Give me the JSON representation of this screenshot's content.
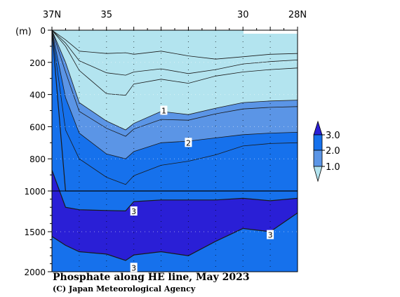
{
  "chart_data": {
    "type": "contour",
    "title": "Phosphate along HE line, May 2023",
    "credit": "(C) Japan Meteorological Agency",
    "ylabel": "(m)",
    "x_ticks": [
      "37N",
      "35",
      "30",
      "28N"
    ],
    "x_tick_values": [
      37,
      35,
      30,
      28
    ],
    "xlim": [
      37,
      28
    ],
    "y_ticks": [
      "0",
      "200",
      "400",
      "600",
      "800",
      "1000",
      "1500",
      "2000"
    ],
    "y_tick_values": [
      0,
      200,
      400,
      600,
      800,
      1000,
      1500,
      2000
    ],
    "ylim": [
      0,
      2000
    ],
    "y_scale": "piecewise: 0-1000 upper panel, 1000-2000 lower panel",
    "stations": [
      36.0,
      35.0,
      34.0,
      33.0,
      32.0,
      31.0,
      30.0,
      29.0
    ],
    "colorbar": {
      "labels": [
        "3.0",
        "2.0",
        "1.0"
      ],
      "levels": [
        1.0,
        2.0,
        3.0
      ]
    },
    "contour_labels": [
      {
        "text": "1",
        "lat": 32.9,
        "depth": 500
      },
      {
        "text": "2",
        "lat": 32.0,
        "depth": 700
      },
      {
        "text": "3",
        "lat": 34.0,
        "depth": 1250
      },
      {
        "text": "3",
        "lat": 29.0,
        "depth": 1540
      },
      {
        "text": "3",
        "lat": 34.0,
        "depth": 1950
      }
    ],
    "isoline_depths": {
      "lat": [
        37.0,
        36.5,
        36.0,
        35.0,
        34.3,
        34.0,
        33.0,
        32.0,
        31.0,
        30.0,
        29.0,
        28.0
      ],
      "c0.4": [
        0,
        60,
        130,
        145,
        140,
        150,
        130,
        160,
        180,
        165,
        150,
        145
      ],
      "c0.6": [
        0,
        80,
        190,
        265,
        280,
        260,
        240,
        270,
        245,
        210,
        195,
        185
      ],
      "c0.8": [
        0,
        100,
        250,
        395,
        405,
        335,
        305,
        330,
        285,
        260,
        245,
        235
      ],
      "c1.0": [
        0,
        200,
        450,
        565,
        620,
        580,
        505,
        525,
        485,
        450,
        440,
        435
      ],
      "c1.5": [
        0,
        260,
        505,
        610,
        660,
        615,
        555,
        560,
        520,
        490,
        480,
        475
      ],
      "c2.0": [
        0,
        420,
        640,
        770,
        800,
        755,
        700,
        690,
        670,
        650,
        640,
        635
      ],
      "c2.5": [
        0,
        620,
        800,
        915,
        960,
        905,
        840,
        815,
        775,
        720,
        705,
        700
      ],
      "c2.8": [
        0,
        1000,
        1000,
        1000,
        1000,
        1000,
        1000,
        1000,
        1000,
        1000,
        1000,
        1000
      ],
      "c3.0": [
        870,
        1200,
        1230,
        1240,
        1245,
        1130,
        1110,
        1110,
        1110,
        1090,
        1120,
        1090
      ],
      "c3.2": [
        1560,
        1670,
        1750,
        1780,
        1860,
        1790,
        1750,
        1800,
        1620,
        1460,
        1500,
        1270
      ]
    },
    "grid": "dotted at stations and depth levels"
  }
}
